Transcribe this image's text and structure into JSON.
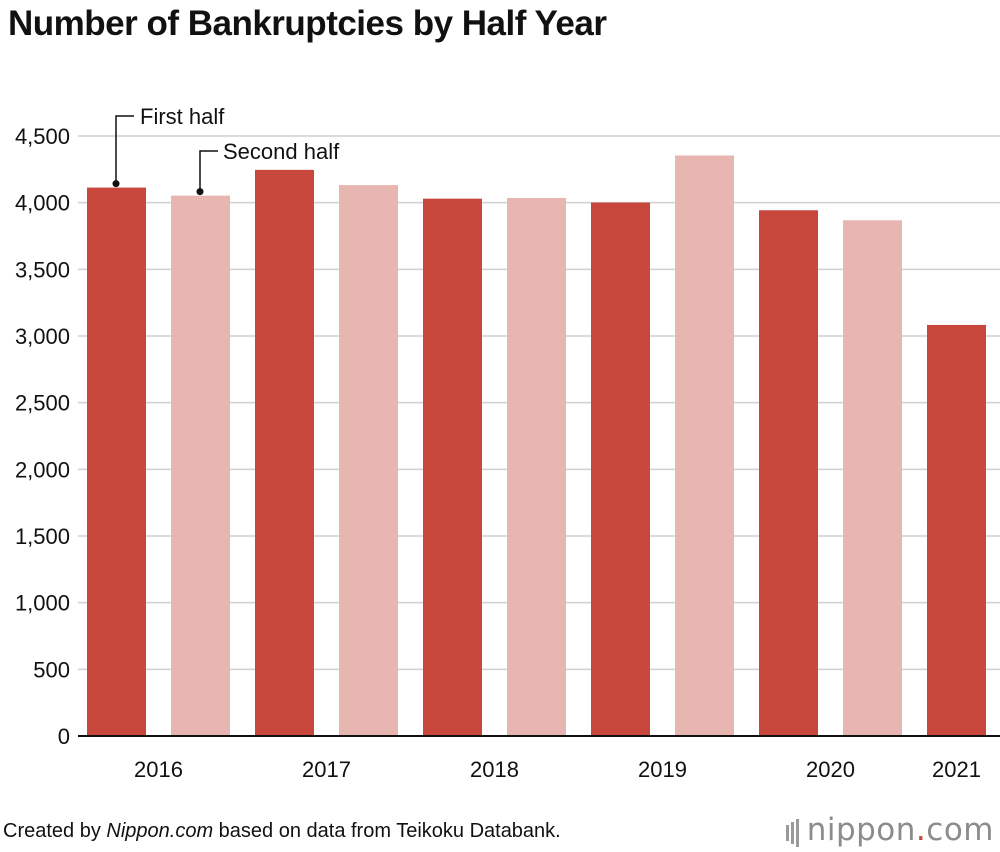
{
  "chart_data": {
    "type": "bar",
    "title": "Number of Bankruptcies by Half Year",
    "categories": [
      "2016",
      "2017",
      "2018",
      "2019",
      "2020",
      "2021"
    ],
    "series": [
      {
        "name": "First half",
        "color": "#c8473d",
        "values": [
          4113,
          4246,
          4030,
          4001,
          3943,
          3083
        ]
      },
      {
        "name": "Second half",
        "color": "#e8b6b1",
        "values": [
          4053,
          4132,
          4035,
          4354,
          3868,
          null
        ]
      }
    ],
    "ylim": [
      0,
      4500
    ],
    "yticks": [
      "0",
      "500",
      "1,000",
      "1,500",
      "2,000",
      "2,500",
      "3,000",
      "3,500",
      "4,000",
      "4,500"
    ],
    "ytick_values": [
      0,
      500,
      1000,
      1500,
      2000,
      2500,
      3000,
      3500,
      4000,
      4500
    ],
    "grid": true,
    "legend": "inline callouts"
  },
  "source": {
    "prefix": "Created by ",
    "publisher": "Nippon.com",
    "suffix": " based on data from Teikoku Databank."
  },
  "logo": {
    "name": "nippon",
    "dot": ".",
    "tld": "com"
  }
}
